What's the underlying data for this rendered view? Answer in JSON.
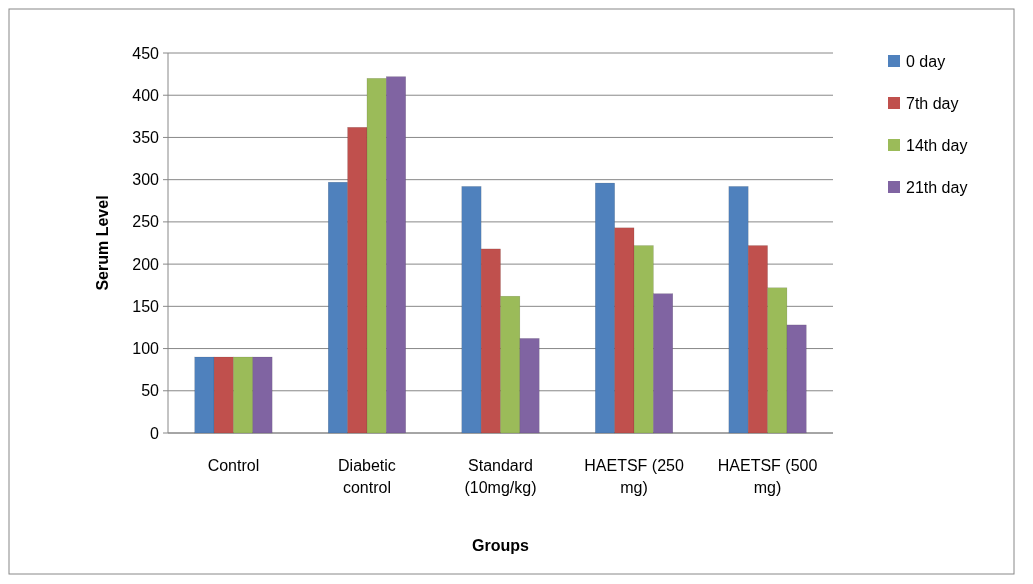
{
  "chart_data": {
    "type": "bar",
    "xlabel": "Groups",
    "ylabel": "Serum Level",
    "categories": [
      "Control",
      "Diabetic control",
      "Standard (10mg/kg)",
      "HAETSF (250 mg)",
      "HAETSF (500 mg)"
    ],
    "series": [
      {
        "name": "0 day",
        "color": "#4f81bd",
        "values": [
          90,
          297,
          292,
          296,
          292
        ]
      },
      {
        "name": "7th day",
        "color": "#c0504d",
        "values": [
          90,
          362,
          218,
          243,
          222
        ]
      },
      {
        "name": "14th day",
        "color": "#9bbb59",
        "values": [
          90,
          420,
          162,
          222,
          172
        ]
      },
      {
        "name": "21th day",
        "color": "#8064a2",
        "values": [
          90,
          422,
          112,
          165,
          128
        ]
      }
    ],
    "ylim": [
      0,
      450
    ],
    "yticks": [
      0,
      50,
      100,
      150,
      200,
      250,
      300,
      350,
      400,
      450
    ],
    "grid": "y",
    "legend": "right"
  }
}
